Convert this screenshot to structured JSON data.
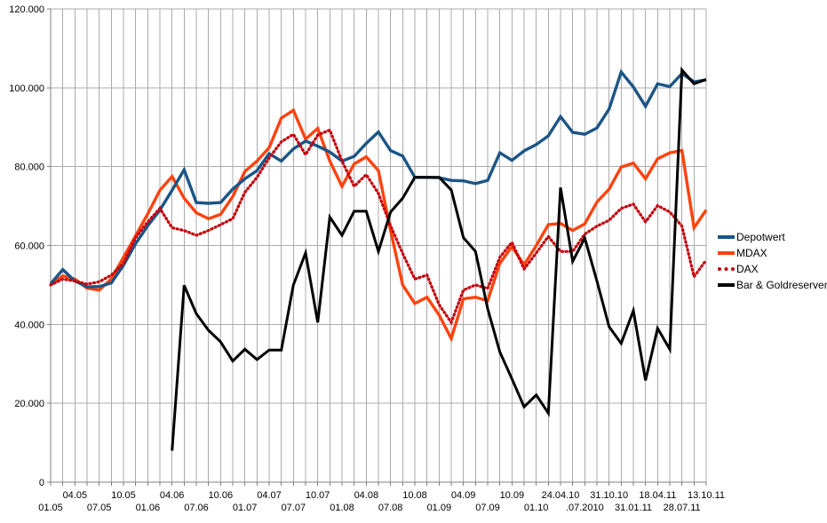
{
  "chart_data": {
    "type": "line",
    "title": "",
    "xlabel": "",
    "ylabel": "",
    "ylim": [
      0,
      120000
    ],
    "grid": true,
    "legend_position": "right",
    "num_points": 55,
    "y_ticks": [
      {
        "value": 0,
        "label": "0"
      },
      {
        "value": 20000,
        "label": "20.000"
      },
      {
        "value": 40000,
        "label": "40.000"
      },
      {
        "value": 60000,
        "label": "60.000"
      },
      {
        "value": 80000,
        "label": "80.000"
      },
      {
        "value": 100000,
        "label": "100.000"
      },
      {
        "value": 120000,
        "label": "120.000"
      }
    ],
    "x_labels": [
      {
        "i": 0,
        "label": "01.05",
        "row": "far"
      },
      {
        "i": 2,
        "label": "04.05",
        "row": "near"
      },
      {
        "i": 4,
        "label": "07.05",
        "row": "far"
      },
      {
        "i": 6,
        "label": "10.05",
        "row": "near"
      },
      {
        "i": 8,
        "label": "01.06",
        "row": "far"
      },
      {
        "i": 10,
        "label": "04.06",
        "row": "near"
      },
      {
        "i": 12,
        "label": "07.06",
        "row": "far"
      },
      {
        "i": 14,
        "label": "10.06",
        "row": "near"
      },
      {
        "i": 16,
        "label": "01.07",
        "row": "far"
      },
      {
        "i": 18,
        "label": "04.07",
        "row": "near"
      },
      {
        "i": 20,
        "label": "07.07",
        "row": "far"
      },
      {
        "i": 22,
        "label": "10.07",
        "row": "near"
      },
      {
        "i": 24,
        "label": "01.08",
        "row": "far"
      },
      {
        "i": 26,
        "label": "04.08",
        "row": "near"
      },
      {
        "i": 28,
        "label": "07.08",
        "row": "far"
      },
      {
        "i": 30,
        "label": "10.08",
        "row": "near"
      },
      {
        "i": 32,
        "label": "01.09",
        "row": "far"
      },
      {
        "i": 34,
        "label": "04.09",
        "row": "near"
      },
      {
        "i": 36,
        "label": "07.09",
        "row": "far"
      },
      {
        "i": 38,
        "label": "10.09",
        "row": "near"
      },
      {
        "i": 40,
        "label": "01.10",
        "row": "far"
      },
      {
        "i": 42,
        "label": "24.04.10",
        "row": "near"
      },
      {
        "i": 44,
        "label": ".07.2010",
        "row": "far"
      },
      {
        "i": 46,
        "label": "31.10.10",
        "row": "near"
      },
      {
        "i": 48,
        "label": "31.01.11",
        "row": "far"
      },
      {
        "i": 50,
        "label": "18.04.11",
        "row": "near"
      },
      {
        "i": 52,
        "label": "28.07.11",
        "row": "far"
      },
      {
        "i": 54,
        "label": "13.10.11",
        "row": "near"
      }
    ],
    "series": [
      {
        "name": "Depotwert",
        "color": "#1B5586",
        "style": "solid",
        "values": [
          50300,
          53900,
          51000,
          49500,
          49600,
          50500,
          55000,
          60500,
          65000,
          69000,
          74000,
          79200,
          70900,
          70700,
          70900,
          74300,
          76900,
          79000,
          83300,
          81400,
          84500,
          86500,
          85200,
          83700,
          81400,
          82600,
          85900,
          88800,
          84100,
          82700,
          77300,
          77300,
          77200,
          76500,
          76400,
          75700,
          76500,
          83500,
          81600,
          84000,
          85600,
          87800,
          92700,
          88700,
          88200,
          89800,
          94600,
          104000,
          100200,
          95300,
          101000,
          100300,
          103600,
          101500,
          102000
        ]
      },
      {
        "name": "MDAX",
        "color": "#FF420E",
        "style": "solid",
        "values": [
          50000,
          52300,
          51500,
          49200,
          48700,
          51500,
          57000,
          62500,
          68000,
          74000,
          77500,
          72000,
          68300,
          66800,
          67900,
          72400,
          78800,
          81400,
          84800,
          92300,
          94300,
          87000,
          89700,
          81400,
          75000,
          80700,
          82500,
          79000,
          63800,
          50000,
          45300,
          46900,
          42400,
          36400,
          46500,
          46900,
          46000,
          55500,
          59700,
          55100,
          60000,
          65300,
          65600,
          63800,
          65500,
          71000,
          74300,
          79900,
          80900,
          76900,
          82000,
          83500,
          84100,
          64500,
          69000
        ]
      },
      {
        "name": "DAX",
        "color": "#C5000B",
        "style": "dotted",
        "values": [
          50000,
          51500,
          51000,
          50200,
          50800,
          52500,
          55500,
          62000,
          66000,
          69400,
          64500,
          63800,
          62600,
          63800,
          65300,
          66800,
          73500,
          77300,
          82200,
          86300,
          88200,
          83000,
          88000,
          89300,
          81400,
          75000,
          78000,
          73200,
          65000,
          58000,
          51500,
          52500,
          45000,
          40500,
          48700,
          50000,
          49100,
          57000,
          60800,
          54000,
          58100,
          62300,
          58500,
          58500,
          62900,
          64900,
          66400,
          69400,
          70500,
          66000,
          70100,
          68500,
          64900,
          52100,
          56300
        ]
      },
      {
        "name": "Bar & Goldreserven",
        "color": "#000000",
        "style": "solid",
        "values": [
          null,
          null,
          null,
          null,
          null,
          null,
          null,
          null,
          null,
          null,
          8000,
          49900,
          42700,
          38500,
          35600,
          30700,
          33700,
          31100,
          33500,
          33500,
          50000,
          58100,
          40500,
          67200,
          62600,
          68700,
          68700,
          58500,
          68500,
          72000,
          77300,
          77300,
          77300,
          74100,
          62000,
          58500,
          44000,
          33000,
          26200,
          19100,
          22100,
          17500,
          74700,
          56000,
          61900,
          51000,
          39400,
          35200,
          43500,
          25800,
          39000,
          33700,
          104500,
          101000,
          102100
        ]
      }
    ]
  },
  "colors": {
    "background": "#ffffff",
    "gridline": "#ababab",
    "axis": "#7f7f7f",
    "label_text": "#000000"
  }
}
